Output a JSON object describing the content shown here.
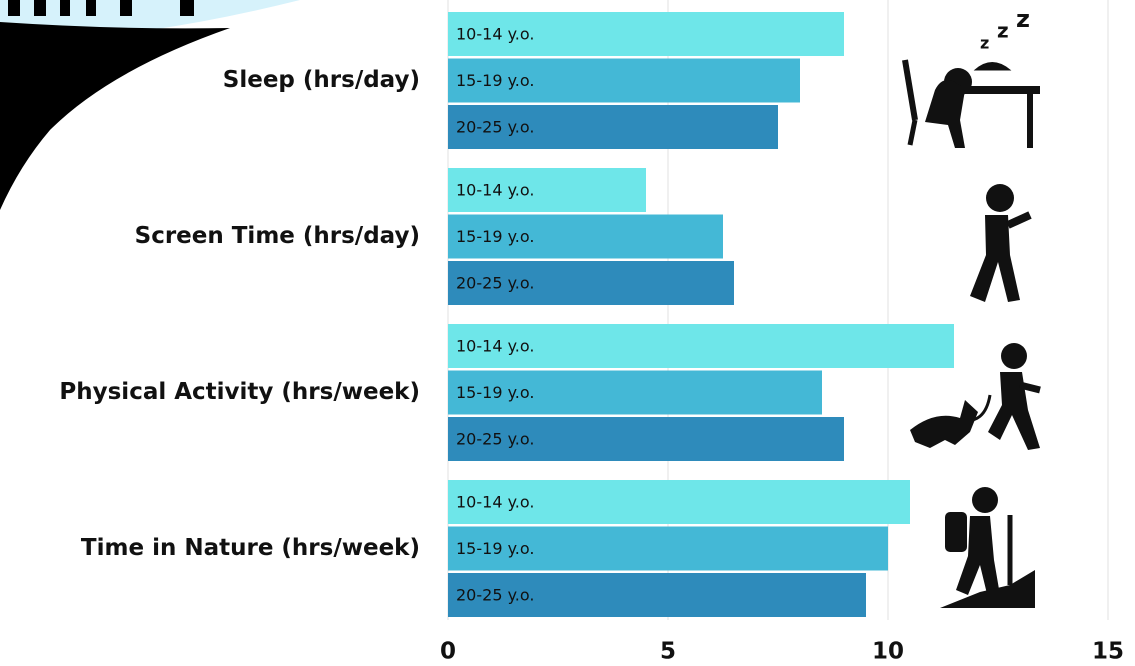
{
  "chart_data": {
    "type": "hbar",
    "categories": [
      "Sleep (hrs/day)",
      "Screen Time (hrs/day)",
      "Physical Activity (hrs/week)",
      "Time in Nature (hrs/week)"
    ],
    "series": [
      {
        "name": "10-14 y.o.",
        "color": "#6ee6e9",
        "values": [
          9,
          4.5,
          11.5,
          10.5
        ]
      },
      {
        "name": "15-19 y.o.",
        "color": "#44b8d6",
        "values": [
          8,
          6.25,
          8.5,
          10
        ]
      },
      {
        "name": "20-25 y.o.",
        "color": "#2e8bbb",
        "values": [
          7.5,
          6.5,
          9,
          9.5
        ]
      }
    ],
    "xlim": [
      0,
      15
    ],
    "xticks": [
      0,
      5,
      10,
      15
    ],
    "grid": true
  }
}
